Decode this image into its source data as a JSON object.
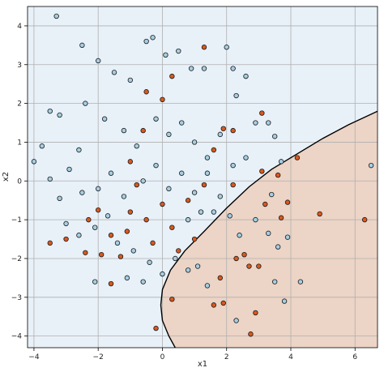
{
  "chart_data": {
    "type": "scatter",
    "xlabel": "x1",
    "ylabel": "x2",
    "xlim": [
      -4.2,
      6.7
    ],
    "ylim": [
      -4.3,
      4.5
    ],
    "xticks": [
      -4,
      -2,
      0,
      2,
      4,
      6
    ],
    "yticks": [
      -4,
      -3,
      -2,
      -1,
      0,
      1,
      2,
      3,
      4
    ],
    "grid": true,
    "colors": {
      "class0_point": "#a6cee3",
      "class1_point": "#d9591e",
      "class0_region": "#e8f1f8",
      "class1_region": "#ecd4c6",
      "boundary": "#000000",
      "grid": "#b0b0b0"
    },
    "decision_boundary": [
      [
        0.4,
        -4.3
      ],
      [
        0.2,
        -4.0
      ],
      [
        0.0,
        -3.6
      ],
      [
        -0.05,
        -3.2
      ],
      [
        0.0,
        -2.8
      ],
      [
        0.25,
        -2.3
      ],
      [
        0.7,
        -1.8
      ],
      [
        1.3,
        -1.3
      ],
      [
        2.0,
        -0.7
      ],
      [
        2.7,
        -0.15
      ],
      [
        3.4,
        0.3
      ],
      [
        4.2,
        0.7
      ],
      [
        5.0,
        1.1
      ],
      [
        5.8,
        1.45
      ],
      [
        6.7,
        1.8
      ]
    ],
    "class1_points": [
      [
        -3.5,
        -1.6
      ],
      [
        -3.0,
        -1.5
      ],
      [
        -2.4,
        -1.85
      ],
      [
        -2.3,
        -1.0
      ],
      [
        -2.0,
        -0.75
      ],
      [
        -1.9,
        -1.9
      ],
      [
        -1.6,
        -1.4
      ],
      [
        -1.3,
        -1.95
      ],
      [
        -1.1,
        -1.3
      ],
      [
        -1.0,
        -0.8
      ],
      [
        -0.8,
        -0.1
      ],
      [
        -0.5,
        -1.0
      ],
      [
        -0.3,
        -1.6
      ],
      [
        0.0,
        -0.6
      ],
      [
        0.3,
        -1.2
      ],
      [
        0.5,
        -1.8
      ],
      [
        0.8,
        -0.5
      ],
      [
        1.0,
        -1.5
      ],
      [
        1.3,
        -0.1
      ],
      [
        1.6,
        0.8
      ],
      [
        -1.6,
        -2.65
      ],
      [
        -1.0,
        0.5
      ],
      [
        -0.6,
        1.3
      ],
      [
        -0.5,
        2.3
      ],
      [
        0.0,
        2.1
      ],
      [
        0.3,
        2.7
      ],
      [
        1.9,
        1.35
      ],
      [
        2.2,
        1.3
      ],
      [
        3.1,
        1.75
      ],
      [
        3.1,
        0.25
      ],
      [
        3.6,
        0.15
      ],
      [
        4.2,
        0.6
      ],
      [
        1.3,
        3.45
      ],
      [
        -0.2,
        -3.8
      ],
      [
        0.3,
        -3.05
      ],
      [
        1.6,
        -3.2
      ],
      [
        1.9,
        -3.15
      ],
      [
        1.8,
        -2.5
      ],
      [
        2.3,
        -2.0
      ],
      [
        2.7,
        -2.2
      ],
      [
        2.9,
        -3.4
      ],
      [
        2.75,
        -3.95
      ],
      [
        3.0,
        -2.2
      ],
      [
        3.2,
        -0.6
      ],
      [
        3.7,
        -0.95
      ],
      [
        3.9,
        -0.55
      ],
      [
        4.9,
        -0.85
      ],
      [
        6.3,
        -1.0
      ],
      [
        2.2,
        -0.1
      ],
      [
        2.55,
        -1.9
      ]
    ],
    "class0_points": [
      [
        -3.3,
        4.25
      ],
      [
        -3.5,
        1.8
      ],
      [
        -3.2,
        1.7
      ],
      [
        -3.75,
        0.9
      ],
      [
        -3.5,
        0.05
      ],
      [
        -3.2,
        -0.45
      ],
      [
        -4.0,
        0.5
      ],
      [
        -2.6,
        0.8
      ],
      [
        -2.5,
        3.5
      ],
      [
        -2.0,
        3.1
      ],
      [
        -1.5,
        2.8
      ],
      [
        -1.0,
        2.6
      ],
      [
        -0.5,
        3.6
      ],
      [
        -0.3,
        3.7
      ],
      [
        0.1,
        3.25
      ],
      [
        0.5,
        3.35
      ],
      [
        0.9,
        2.9
      ],
      [
        1.3,
        2.9
      ],
      [
        2.0,
        3.45
      ],
      [
        2.2,
        2.9
      ],
      [
        2.3,
        2.2
      ],
      [
        2.6,
        2.7
      ],
      [
        -2.4,
        2.0
      ],
      [
        -1.8,
        1.6
      ],
      [
        -1.2,
        1.3
      ],
      [
        -0.8,
        0.9
      ],
      [
        -0.2,
        1.6
      ],
      [
        0.2,
        1.2
      ],
      [
        0.6,
        1.5
      ],
      [
        1.0,
        1.0
      ],
      [
        1.4,
        0.6
      ],
      [
        1.8,
        1.2
      ],
      [
        2.2,
        0.4
      ],
      [
        2.6,
        0.6
      ],
      [
        2.9,
        1.5
      ],
      [
        3.3,
        1.5
      ],
      [
        3.5,
        1.15
      ],
      [
        -2.9,
        0.3
      ],
      [
        -2.5,
        -0.3
      ],
      [
        -2.0,
        -0.2
      ],
      [
        -1.6,
        0.2
      ],
      [
        -1.2,
        -0.4
      ],
      [
        -0.6,
        0.0
      ],
      [
        -0.2,
        0.4
      ],
      [
        0.2,
        -0.2
      ],
      [
        0.6,
        0.2
      ],
      [
        1.0,
        -0.3
      ],
      [
        1.4,
        0.2
      ],
      [
        1.8,
        -0.4
      ],
      [
        -3.0,
        -1.1
      ],
      [
        -2.6,
        -1.4
      ],
      [
        -2.1,
        -1.2
      ],
      [
        -1.7,
        -0.9
      ],
      [
        -1.4,
        -1.6
      ],
      [
        -0.9,
        -1.8
      ],
      [
        -0.4,
        -2.1
      ],
      [
        0.0,
        -2.4
      ],
      [
        0.4,
        -2.0
      ],
      [
        0.8,
        -1.0
      ],
      [
        1.2,
        -0.8
      ],
      [
        1.6,
        -0.8
      ],
      [
        -1.1,
        -2.5
      ],
      [
        -0.6,
        -2.6
      ],
      [
        2.1,
        -0.9
      ],
      [
        2.4,
        -1.4
      ],
      [
        2.9,
        -1.0
      ],
      [
        3.3,
        -1.35
      ],
      [
        3.6,
        -1.7
      ],
      [
        3.9,
        -1.45
      ],
      [
        3.5,
        -2.6
      ],
      [
        3.8,
        -3.1
      ],
      [
        4.3,
        -2.6
      ],
      [
        3.4,
        -0.35
      ],
      [
        3.7,
        0.5
      ],
      [
        6.5,
        0.4
      ],
      [
        2.3,
        -3.6
      ],
      [
        1.1,
        -2.2
      ],
      [
        1.4,
        -2.7
      ],
      [
        0.8,
        -2.3
      ],
      [
        -2.1,
        -2.6
      ]
    ]
  }
}
